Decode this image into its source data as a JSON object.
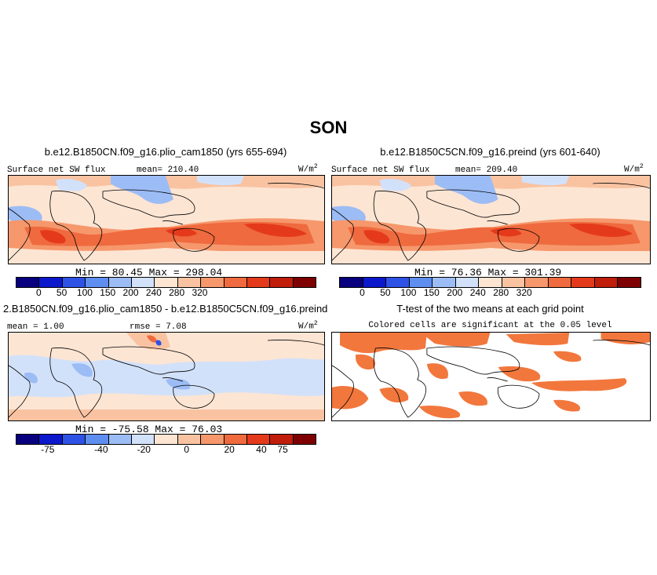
{
  "title": "SON",
  "colors": {
    "abs_scale": [
      "#08007e",
      "#0b18cc",
      "#2f52e6",
      "#5e8ef0",
      "#9cbcf5",
      "#d2e1fa",
      "#fde5d3",
      "#f9c3a2",
      "#f6976c",
      "#ef6a3e",
      "#e43a1b",
      "#c01d0b",
      "#7e0000"
    ],
    "diff_scale": [
      "#08007e",
      "#0b18cc",
      "#2f52e6",
      "#5e8ef0",
      "#9cbcf5",
      "#d2e1fa",
      "#fde5d3",
      "#f9c3a2",
      "#f6976c",
      "#ef6a3e",
      "#e43a1b",
      "#c01d0b",
      "#7e0000"
    ],
    "significant": "#f2773d",
    "land_outline": "#000000"
  },
  "panels": {
    "p1": {
      "title": "b.e12.B1850CN.f09_g16.plio_cam1850 (yrs 655-694)",
      "left_label": "Surface net SW flux",
      "mean_label": "mean= 210.40",
      "units": "W/m",
      "units_sup": "2",
      "minmax": "Min =  80.45  Max = 298.04"
    },
    "p2": {
      "title": "b.e12.B1850C5CN.f09_g16.preind (yrs 601-640)",
      "left_label": "Surface net SW flux",
      "mean_label": "mean= 209.40",
      "units": "W/m",
      "units_sup": "2",
      "minmax": "Min =  76.36  Max = 301.39"
    },
    "p3": {
      "title": "2.B1850CN.f09_g16.plio_cam1850 - b.e12.B1850C5CN.f09_g16.preind",
      "left_label": "mean =   1.00",
      "mean_label": "rmse =   7.08",
      "units": "W/m",
      "units_sup": "2",
      "minmax": "Min = -75.58  Max =  76.03"
    },
    "p4": {
      "title": "T-test of the two means at each grid point",
      "subtitle": "Colored cells are significant at the 0.05 level"
    }
  },
  "colorbars": {
    "abs_ticks": [
      "0",
      "50",
      "100",
      "150",
      "200",
      "240",
      "280",
      "320"
    ],
    "diff_ticks": [
      "-75",
      "-40",
      "-20",
      "0",
      "20",
      "40",
      "75"
    ]
  }
}
